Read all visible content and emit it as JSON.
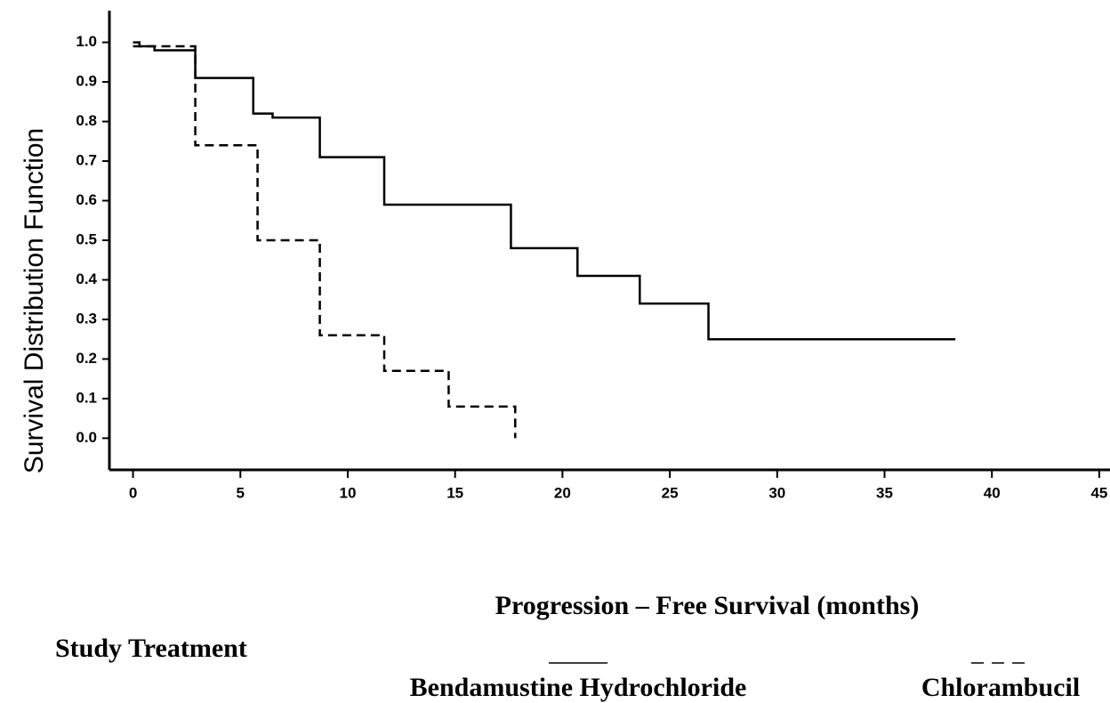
{
  "chart_data": {
    "type": "step-line",
    "y_label": "Survival Distribution Function",
    "x_label": "Progression – Free Survival (months)",
    "legend_title": "Study Treatment",
    "xlim": [
      -1.1,
      45.5
    ],
    "ylim": [
      -0.08,
      1.08
    ],
    "xticks": [
      0,
      5,
      10,
      15,
      20,
      25,
      30,
      35,
      40,
      45
    ],
    "yticks": [
      {
        "value": 1,
        "label": "1.0"
      },
      0.9,
      0.8,
      0.7,
      0.6,
      0.5,
      0.4,
      0.3,
      0.2,
      0.1,
      {
        "value": 0,
        "label": "0.0"
      }
    ],
    "series": [
      {
        "name": "Bendamustine Hydrochloride",
        "color": "#000000",
        "line_style": "solid",
        "x": [
          0,
          0.3,
          0.3,
          1,
          1,
          2.9,
          2.9,
          5.6,
          5.6,
          6.5,
          6.5,
          8.7,
          8.7,
          11.7,
          11.7,
          17.6,
          17.6,
          20.7,
          20.7,
          23.6,
          23.6,
          26.8,
          26.8,
          38.3
        ],
        "values": [
          1.0,
          1.0,
          0.99,
          0.99,
          0.98,
          0.98,
          0.91,
          0.91,
          0.82,
          0.82,
          0.81,
          0.81,
          0.71,
          0.71,
          0.59,
          0.59,
          0.48,
          0.48,
          0.41,
          0.41,
          0.34,
          0.34,
          0.25,
          0.25
        ]
      },
      {
        "name": "Chlorambucil",
        "color": "#000000",
        "line_style": "dashed",
        "x": [
          0,
          2.9,
          2.9,
          5.8,
          5.8,
          8.7,
          8.7,
          11.7,
          11.7,
          14.7,
          14.7,
          17.8,
          17.8
        ],
        "values": [
          0.99,
          0.99,
          0.74,
          0.74,
          0.5,
          0.5,
          0.26,
          0.26,
          0.17,
          0.17,
          0.08,
          0.08,
          0
        ]
      }
    ]
  }
}
